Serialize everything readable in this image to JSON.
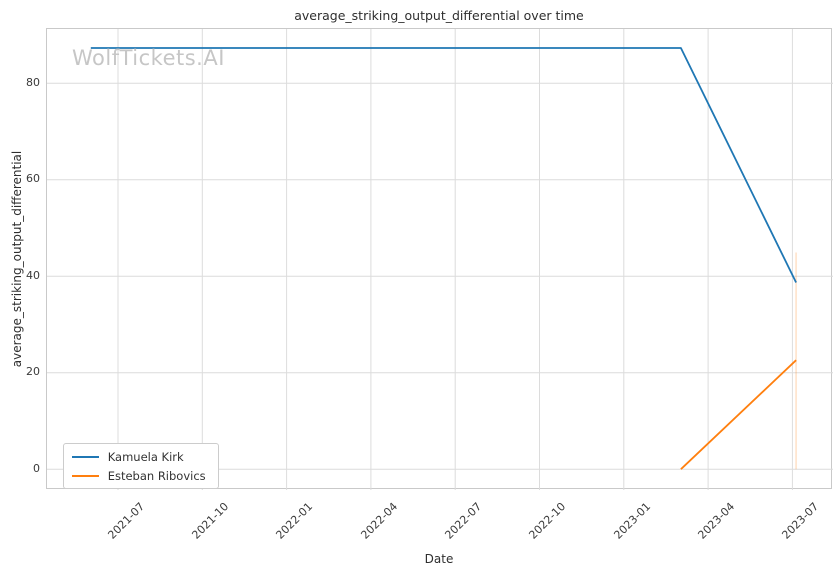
{
  "watermark": "WolfTickets.AI",
  "chart_data": {
    "type": "line",
    "title": "average_striking_output_differential over time",
    "xlabel": "Date",
    "ylabel": "average_striking_output_differential",
    "x_tick_labels": [
      "2021-07",
      "2021-10",
      "2022-01",
      "2022-04",
      "2022-07",
      "2022-10",
      "2023-01",
      "2023-04",
      "2023-07"
    ],
    "y_ticks": [
      0,
      20,
      40,
      60,
      80
    ],
    "ylim": [
      -4.4,
      91.7
    ],
    "grid": true,
    "legend_position": "lower-left",
    "series": [
      {
        "name": "Kamuela Kirk",
        "color": "#1f77b4",
        "points": [
          {
            "date": "2021-06-02",
            "value": 87.3
          },
          {
            "date": "2023-03-02",
            "value": 87.3
          },
          {
            "date": "2023-07-05",
            "value": 38.7
          }
        ]
      },
      {
        "name": "Esteban Ribovics",
        "color": "#ff7f0e",
        "points": [
          {
            "date": "2023-03-02",
            "value": 0.0
          },
          {
            "date": "2023-07-05",
            "value": 22.6
          }
        ]
      }
    ],
    "annotations": [
      {
        "type": "vertical-segment",
        "date": "2023-07-05",
        "value_from": 0,
        "value_to": 44.9,
        "color": "#ff7f0e",
        "opacity": 0.22
      }
    ]
  },
  "colors": {
    "grid": "#dcdcdc",
    "spine": "#c9c9c9",
    "tick_text": "#3a3a3a",
    "title_text": "#2e2e2e",
    "watermark": "#c6c6c6"
  }
}
